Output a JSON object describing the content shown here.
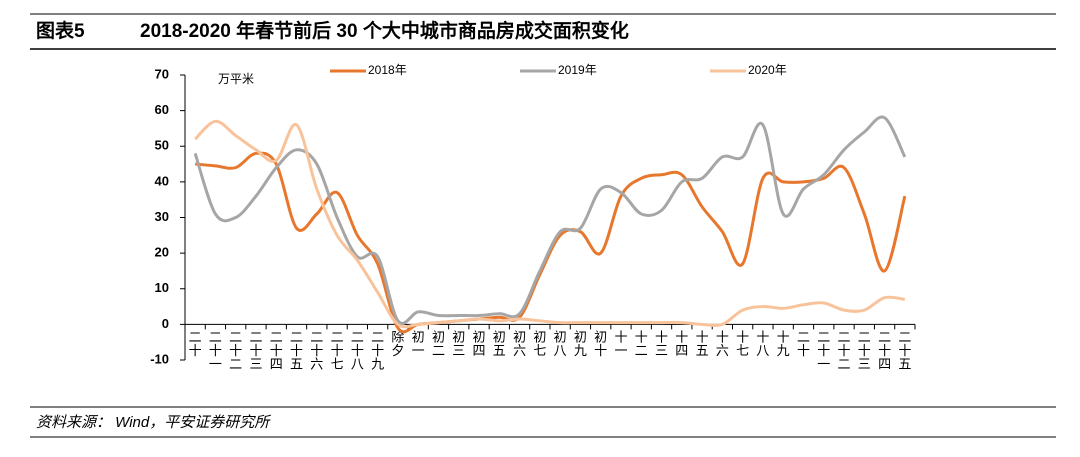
{
  "figure_label": "图表5",
  "chart_data": {
    "type": "line",
    "title": "2018-2020 年春节前后 30 个大中城市商品房成交面积变化",
    "y_label": "万平米",
    "categories": [
      "二十",
      "二十一",
      "二十二",
      "二十三",
      "二十四",
      "二十五",
      "二十六",
      "二十七",
      "二十八",
      "二十九",
      "除夕",
      "初一",
      "初二",
      "初三",
      "初四",
      "初五",
      "初六",
      "初七",
      "初八",
      "初九",
      "初十",
      "十一",
      "十二",
      "十三",
      "十四",
      "十五",
      "十六",
      "十七",
      "十八",
      "十九",
      "二十",
      "二十一",
      "二十二",
      "二十三",
      "二十四",
      "二十五"
    ],
    "series": [
      {
        "name": "2018年",
        "color": "#E8772E",
        "values": [
          45,
          44.5,
          44,
          48,
          45,
          27,
          31,
          37,
          25,
          17,
          -1,
          0,
          0.5,
          1,
          1.5,
          2,
          2,
          14,
          25,
          26,
          20,
          36,
          41,
          42,
          42,
          33,
          26,
          17,
          41,
          40,
          40,
          41,
          44,
          31,
          15,
          36
        ]
      },
      {
        "name": "2019年",
        "color": "#A6A6A6",
        "values": [
          48,
          31,
          30,
          36,
          44,
          49,
          45,
          30,
          19,
          19,
          1,
          3.5,
          2.5,
          2.5,
          2.5,
          3,
          3,
          15,
          26,
          27,
          38,
          37,
          31,
          32,
          40,
          41,
          47,
          47,
          56,
          31,
          38,
          42,
          49,
          54,
          58,
          47
        ]
      },
      {
        "name": "2020年",
        "color": "#F8C39B",
        "values": [
          52,
          57,
          53,
          49,
          46,
          56,
          38,
          25,
          18,
          9,
          0,
          0,
          0.5,
          1,
          1.5,
          1,
          1.5,
          1,
          0.5,
          0.5,
          0.5,
          0.5,
          0.5,
          0.5,
          0.5,
          0,
          0,
          4,
          5,
          4.5,
          5.5,
          6,
          4,
          4,
          7.5,
          7
        ]
      }
    ],
    "ylim": [
      -10,
      70
    ],
    "yticks": [
      -10,
      0,
      10,
      20,
      30,
      40,
      50,
      60,
      70
    ],
    "legend": "top"
  },
  "source": "资料来源： Wind，平安证券研究所"
}
